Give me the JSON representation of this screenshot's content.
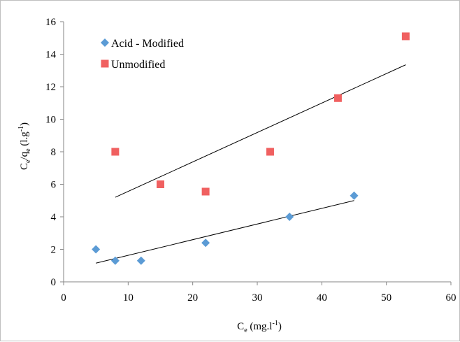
{
  "chart_data": {
    "type": "scatter",
    "xlabel": {
      "base": "C",
      "sub": "e",
      "unit": " (mg.l",
      "sup": "-1",
      "close": ")"
    },
    "ylabel": {
      "base1": "C",
      "sub1": "e",
      "slash": "/q",
      "sub2": "e",
      "unit": " (l.g",
      "sup": "-1",
      "close": ")"
    },
    "xlim": [
      0,
      60
    ],
    "ylim": [
      0,
      16
    ],
    "x_ticks": [
      "0",
      "10",
      "20",
      "30",
      "40",
      "50",
      "60"
    ],
    "y_ticks": [
      "0",
      "2",
      "4",
      "6",
      "8",
      "10",
      "12",
      "14",
      "16"
    ],
    "grid": false,
    "legend_position": "top-left",
    "series": [
      {
        "name": "Acid - Modified",
        "marker": "diamond",
        "color": "#5b9bd5",
        "points": [
          [
            5,
            2.0
          ],
          [
            8,
            1.3
          ],
          [
            12,
            1.3
          ],
          [
            22,
            2.4
          ],
          [
            35,
            4.0
          ],
          [
            45,
            5.3
          ]
        ],
        "trendline": [
          [
            5,
            1.15
          ],
          [
            45,
            5.0
          ]
        ]
      },
      {
        "name": "Unmodified",
        "marker": "square",
        "color": "#f06060",
        "points": [
          [
            8,
            8.0
          ],
          [
            15,
            6.0
          ],
          [
            22,
            5.55
          ],
          [
            32,
            8.0
          ],
          [
            42.5,
            11.3
          ],
          [
            53,
            15.1
          ]
        ],
        "trendline": [
          [
            8,
            5.2
          ],
          [
            53,
            13.35
          ]
        ]
      }
    ]
  }
}
